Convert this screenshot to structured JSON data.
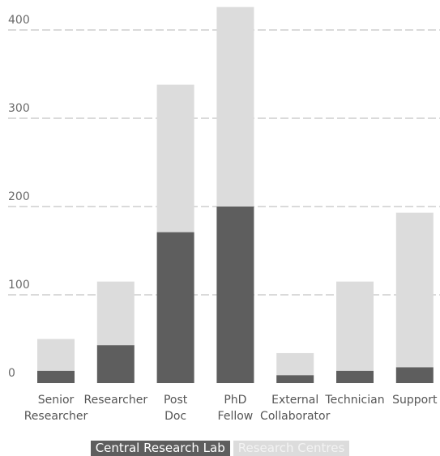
{
  "chart_data": {
    "type": "bar",
    "stacked": true,
    "categories": [
      [
        "Senior",
        "Researcher"
      ],
      [
        "Researcher"
      ],
      [
        "Post",
        "Doc"
      ],
      [
        "PhD",
        "Fellow"
      ],
      [
        "External",
        "Collaborator"
      ],
      [
        "Technician"
      ],
      [
        "Support"
      ]
    ],
    "series": [
      {
        "name": "Central Research Lab",
        "color": "#5e5e5e",
        "values": [
          14,
          43,
          171,
          200,
          9,
          14,
          18
        ]
      },
      {
        "name": "Research Centres",
        "color": "#dcdcdc",
        "values": [
          36,
          72,
          167,
          226,
          25,
          101,
          175
        ]
      }
    ],
    "y_ticks": [
      0,
      100,
      200,
      300,
      400
    ],
    "ylim": [
      0,
      430
    ],
    "grid": true,
    "legend_position": "bottom-center",
    "title": "",
    "xlabel": "",
    "ylabel": ""
  }
}
